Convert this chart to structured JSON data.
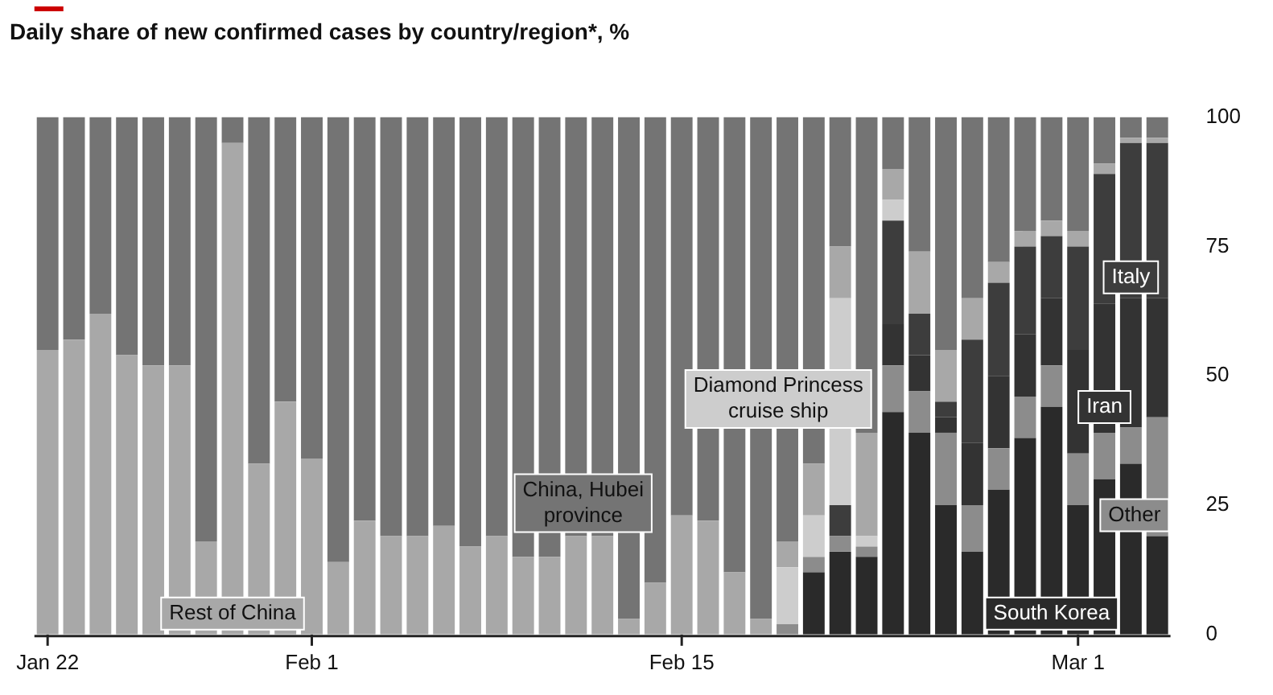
{
  "chart_data": {
    "type": "bar",
    "stacked": true,
    "title": "Daily share of new confirmed cases by country/region*, %",
    "categories": [
      "Jan 22",
      null,
      null,
      null,
      null,
      null,
      null,
      null,
      null,
      null,
      "Feb 1",
      null,
      null,
      null,
      null,
      null,
      null,
      null,
      null,
      null,
      null,
      null,
      null,
      null,
      "Feb 15",
      null,
      null,
      null,
      null,
      null,
      null,
      null,
      null,
      null,
      null,
      null,
      null,
      null,
      null,
      "Mar 1",
      null,
      null,
      null
    ],
    "series": [
      {
        "name": "South Korea",
        "color": "#2a2a2a",
        "values": [
          0,
          0,
          0,
          0,
          0,
          0,
          0,
          0,
          0,
          0,
          0,
          0,
          0,
          0,
          0,
          0,
          0,
          0,
          0,
          0,
          0,
          0,
          0,
          0,
          0,
          0,
          0,
          0,
          0,
          12,
          16,
          15,
          43,
          39,
          25,
          16,
          28,
          38,
          44,
          25,
          30,
          33,
          19
        ]
      },
      {
        "name": "Other",
        "color": "#8c8c8c",
        "values": [
          0,
          0,
          0,
          0,
          0,
          0,
          0,
          0,
          0,
          0,
          0,
          0,
          0,
          0,
          0,
          0,
          0,
          0,
          0,
          0,
          0,
          0,
          0,
          0,
          0,
          0,
          0,
          0,
          2,
          3,
          3,
          2,
          9,
          8,
          14,
          9,
          8,
          8,
          8,
          10,
          9,
          7,
          23
        ]
      },
      {
        "name": "Iran",
        "color": "#333333",
        "values": [
          0,
          0,
          0,
          0,
          0,
          0,
          0,
          0,
          0,
          0,
          0,
          0,
          0,
          0,
          0,
          0,
          0,
          0,
          0,
          0,
          0,
          0,
          0,
          0,
          0,
          0,
          0,
          0,
          0,
          0,
          0,
          0,
          8,
          7,
          3,
          12,
          14,
          12,
          13,
          20,
          25,
          25,
          23
        ]
      },
      {
        "name": "Italy",
        "color": "#3d3d3d",
        "values": [
          0,
          0,
          0,
          0,
          0,
          0,
          0,
          0,
          0,
          0,
          0,
          0,
          0,
          0,
          0,
          0,
          0,
          0,
          0,
          0,
          0,
          0,
          0,
          0,
          0,
          0,
          0,
          0,
          0,
          0,
          6,
          0,
          20,
          8,
          3,
          20,
          18,
          17,
          12,
          20,
          25,
          30,
          30
        ]
      },
      {
        "name": "Diamond Princess cruise ship",
        "color": "#cdcdcd",
        "values": [
          0,
          0,
          0,
          0,
          0,
          0,
          0,
          0,
          0,
          0,
          0,
          0,
          0,
          0,
          0,
          0,
          0,
          0,
          0,
          0,
          0,
          0,
          0,
          0,
          0,
          0,
          0,
          0,
          11,
          8,
          40,
          2,
          4,
          0,
          0,
          0,
          0,
          0,
          0,
          0,
          0,
          0,
          0
        ]
      },
      {
        "name": "Rest of China",
        "color": "#a8a8a8",
        "values": [
          55,
          57,
          62,
          54,
          52,
          52,
          18,
          95,
          33,
          45,
          34,
          14,
          22,
          19,
          19,
          21,
          17,
          19,
          15,
          15,
          19,
          19,
          3,
          10,
          23,
          22,
          12,
          3,
          5,
          10,
          10,
          20,
          6,
          12,
          10,
          8,
          4,
          3,
          3,
          3,
          2,
          1,
          1
        ]
      },
      {
        "name": "China, Hubei province",
        "color": "#747474",
        "values": [
          45,
          43,
          38,
          46,
          48,
          48,
          82,
          5,
          67,
          55,
          66,
          86,
          78,
          81,
          81,
          79,
          83,
          81,
          85,
          85,
          81,
          81,
          97,
          90,
          77,
          78,
          88,
          97,
          82,
          67,
          25,
          61,
          10,
          26,
          45,
          35,
          28,
          22,
          20,
          22,
          9,
          4,
          4
        ]
      }
    ],
    "ylim": [
      0,
      100
    ],
    "yticks": [
      0,
      25,
      50,
      75,
      100
    ],
    "grid": false,
    "legend": false
  }
}
